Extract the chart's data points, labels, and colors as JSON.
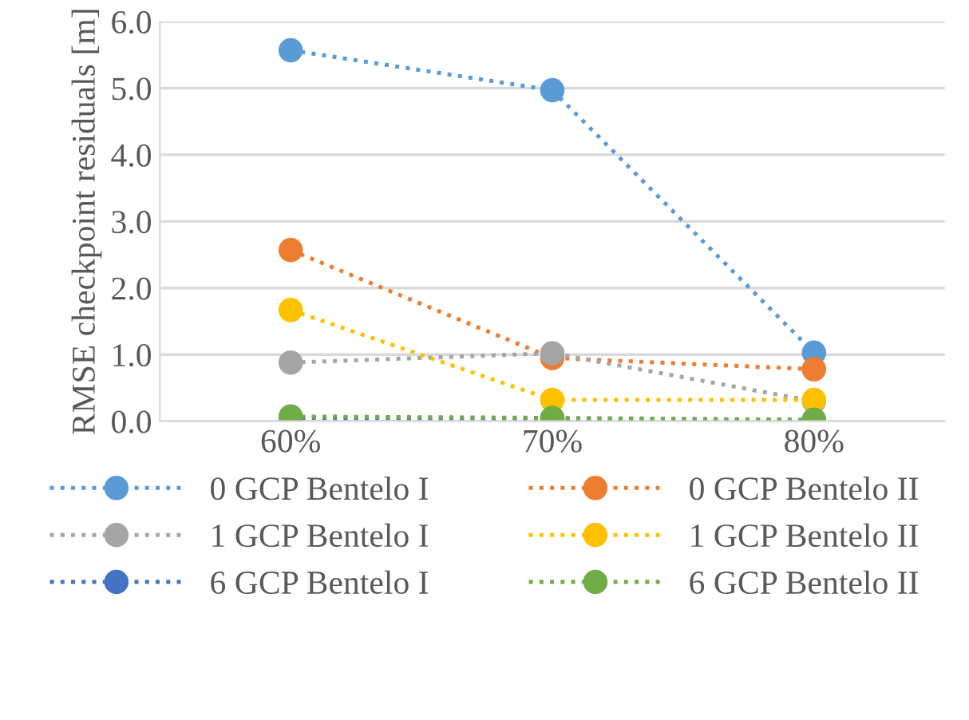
{
  "chart_data": {
    "type": "line",
    "ylabel": "RMSE checkpoint residuals [m]",
    "categories": [
      "60%",
      "70%",
      "80%"
    ],
    "series": [
      {
        "name": "0 GCP Bentelo I",
        "color": "#5b9bd5",
        "values": [
          5.57,
          4.97,
          1.03
        ]
      },
      {
        "name": "0 GCP Bentelo II",
        "color": "#ed7d31",
        "values": [
          2.57,
          0.95,
          0.78
        ]
      },
      {
        "name": "1 GCP Bentelo I",
        "color": "#a5a5a5",
        "values": [
          0.88,
          1.02,
          0.3
        ]
      },
      {
        "name": "1 GCP Bentelo II",
        "color": "#ffc000",
        "values": [
          1.67,
          0.32,
          0.32
        ]
      },
      {
        "name": "6 GCP Bentelo I",
        "color": "#4472c4",
        "values": [
          0.05,
          0.04,
          0.02
        ]
      },
      {
        "name": "6 GCP Bentelo II",
        "color": "#70ad47",
        "values": [
          0.07,
          0.05,
          0.02
        ]
      }
    ],
    "ylim": [
      0,
      6
    ],
    "yticks": [
      {
        "value": 0,
        "label": "0.0"
      },
      {
        "value": 1,
        "label": "1.0"
      },
      {
        "value": 2,
        "label": "2.0"
      },
      {
        "value": 3,
        "label": "3.0"
      },
      {
        "value": 4,
        "label": "4.0"
      },
      {
        "value": 5,
        "label": "5.0"
      },
      {
        "value": 6,
        "label": "6.0"
      }
    ],
    "grid": "y",
    "legend": "bottom",
    "marker": "circle",
    "line_style": "dotted"
  }
}
